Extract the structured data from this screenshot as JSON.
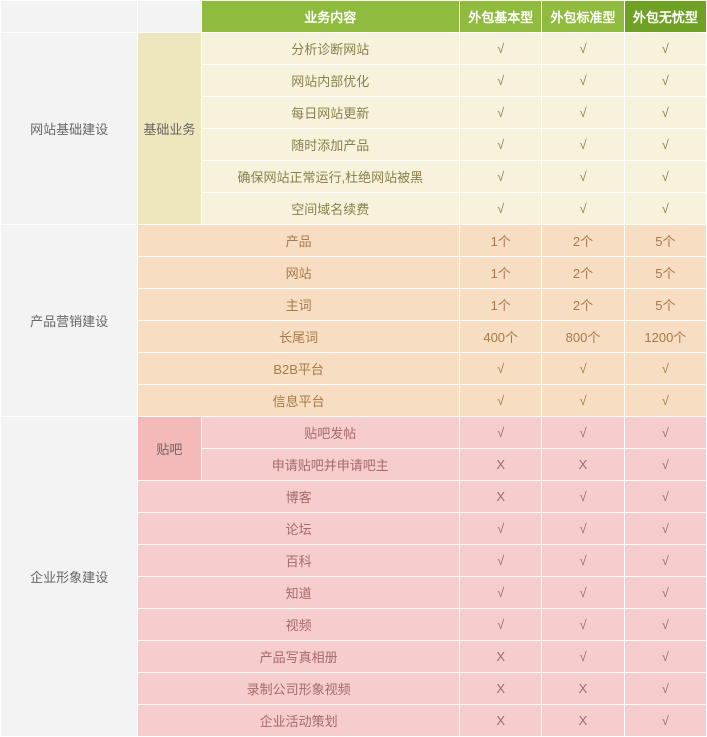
{
  "header": {
    "blank1": "",
    "blank2": "",
    "content": "业务内容",
    "plan1": "外包基本型",
    "plan2": "外包标准型",
    "plan3": "外包无忧型"
  },
  "sections": [
    {
      "category": "网站基础建设",
      "subcategory": "基础业务",
      "catClass": "s1-cat",
      "subClass": "s1-sub",
      "rowClass": "s1-row",
      "rows": [
        {
          "content": "分析诊断网站",
          "p1": "√",
          "p2": "√",
          "p3": "√"
        },
        {
          "content": "网站内部优化",
          "p1": "√",
          "p2": "√",
          "p3": "√"
        },
        {
          "content": "每日网站更新",
          "p1": "√",
          "p2": "√",
          "p3": "√"
        },
        {
          "content": "随时添加产品",
          "p1": "√",
          "p2": "√",
          "p3": "√"
        },
        {
          "content": "确保网站正常运行,杜绝网站被黑",
          "p1": "√",
          "p2": "√",
          "p3": "√"
        },
        {
          "content": "空间域名续费",
          "p1": "√",
          "p2": "√",
          "p3": "√"
        }
      ]
    },
    {
      "category": "产品营销建设",
      "subcategory": "",
      "catClass": "s2-cat",
      "subClass": "s2-row",
      "rowClass": "s2-row",
      "rows": [
        {
          "content": "产品",
          "p1": "1个",
          "p2": "2个",
          "p3": "5个"
        },
        {
          "content": "网站",
          "p1": "1个",
          "p2": "2个",
          "p3": "5个"
        },
        {
          "content": "主词",
          "p1": "1个",
          "p2": "2个",
          "p3": "5个"
        },
        {
          "content": "长尾词",
          "p1": "400个",
          "p2": "800个",
          "p3": "1200个"
        },
        {
          "content": "B2B平台",
          "p1": "√",
          "p2": "√",
          "p3": "√"
        },
        {
          "content": "信息平台",
          "p1": "√",
          "p2": "√",
          "p3": "√"
        }
      ]
    },
    {
      "category": "企业形象建设",
      "subcategory": "贴吧",
      "subSpan": 2,
      "catClass": "s3-cat",
      "subClass": "s3-sub",
      "rowClass": "s3-row",
      "rows": [
        {
          "content": "贴吧发帖",
          "p1": "√",
          "p2": "√",
          "p3": "√",
          "inSub": true
        },
        {
          "content": "申请贴吧并申请吧主",
          "p1": "X",
          "p2": "X",
          "p3": "√",
          "inSub": true
        },
        {
          "content": "博客",
          "p1": "X",
          "p2": "√",
          "p3": "√"
        },
        {
          "content": "论坛",
          "p1": "√",
          "p2": "√",
          "p3": "√"
        },
        {
          "content": "百科",
          "p1": "√",
          "p2": "√",
          "p3": "√"
        },
        {
          "content": "知道",
          "p1": "√",
          "p2": "√",
          "p3": "√"
        },
        {
          "content": "视频",
          "p1": "√",
          "p2": "√",
          "p3": "√"
        },
        {
          "content": "产品写真相册",
          "p1": "X",
          "p2": "√",
          "p3": "√"
        },
        {
          "content": "录制公司形象视频",
          "p1": "X",
          "p2": "X",
          "p3": "√"
        },
        {
          "content": "企业活动策划",
          "p1": "X",
          "p2": "X",
          "p3": "√"
        }
      ]
    }
  ]
}
